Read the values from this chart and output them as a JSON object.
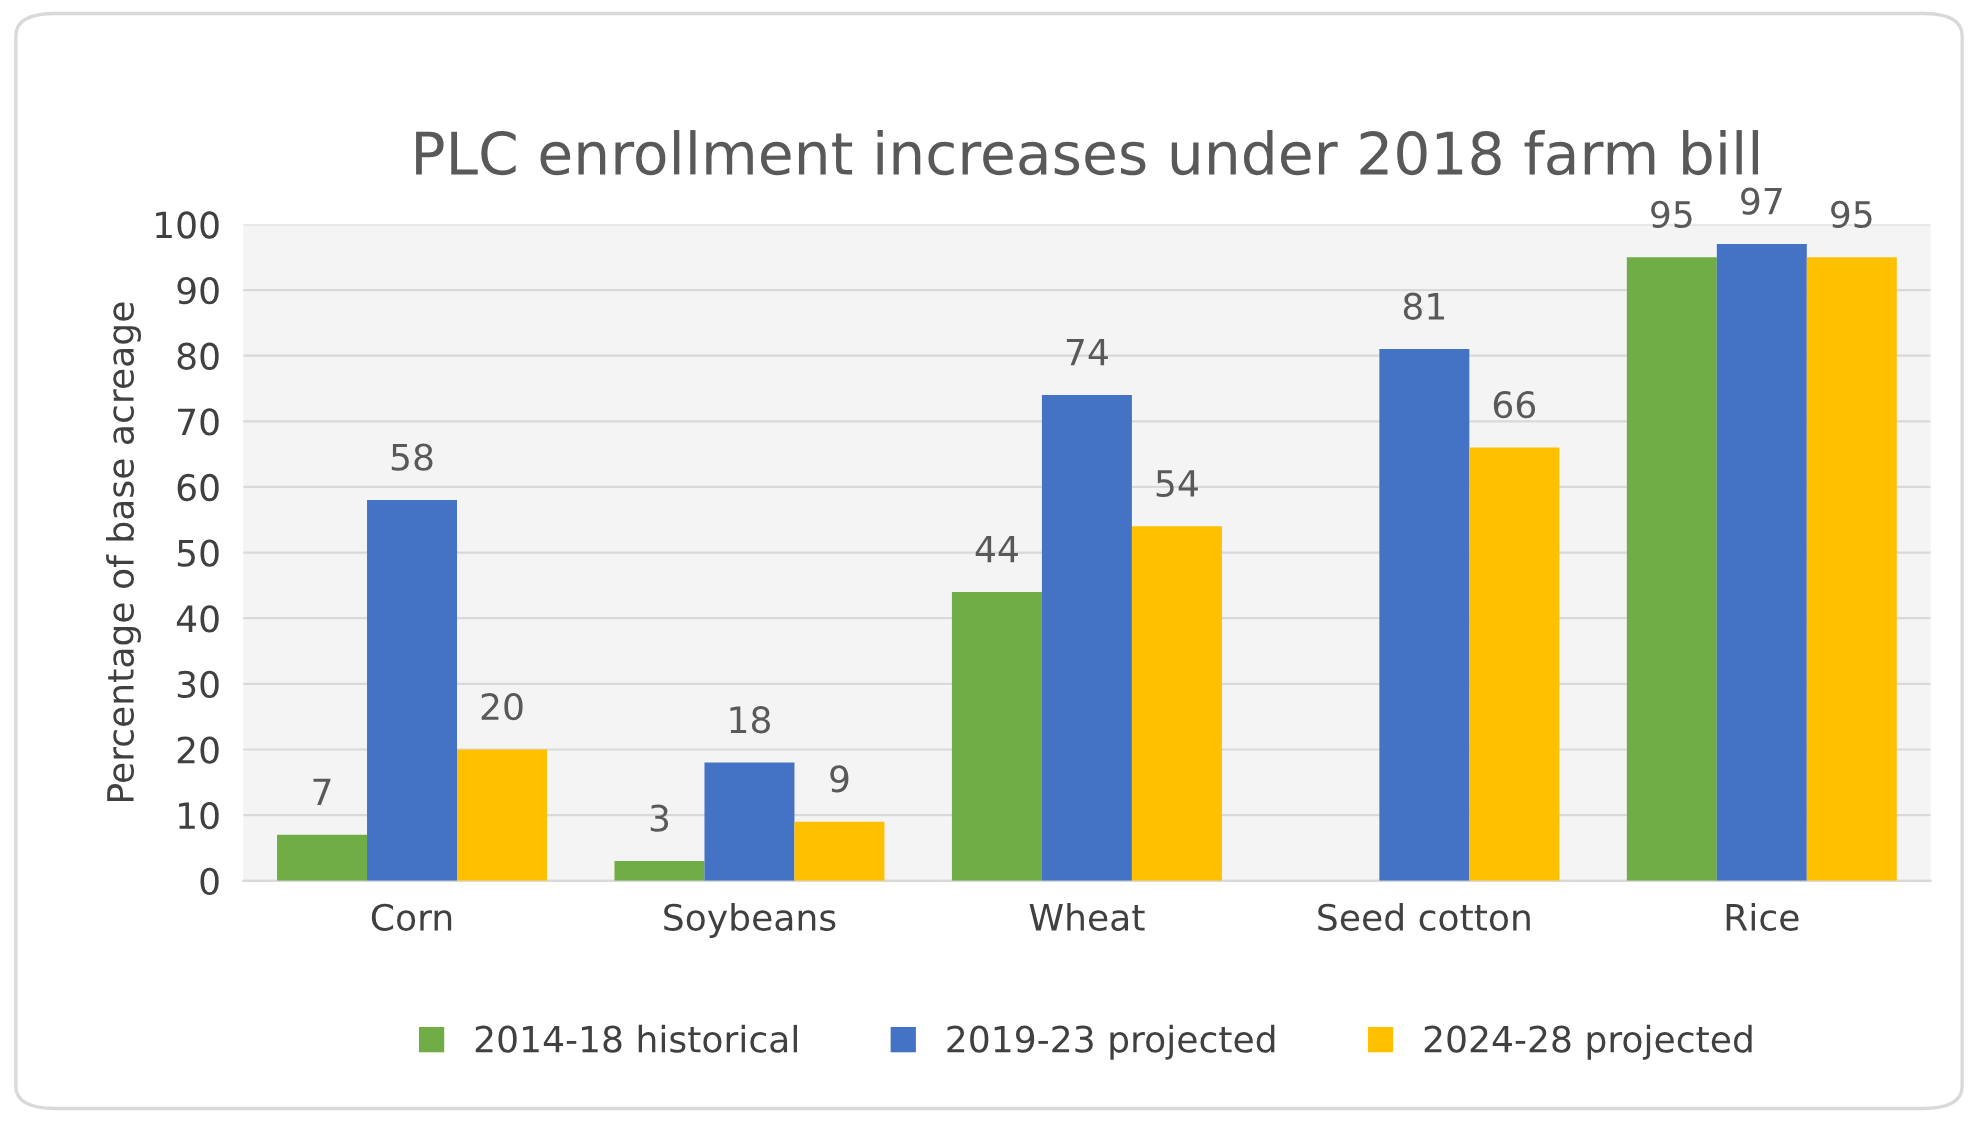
{
  "chart_data": {
    "type": "bar",
    "title": "PLC enrollment increases under 2018 farm bill",
    "ylabel": "Percentage of base acreage",
    "categories": [
      "Corn",
      "Soybeans",
      "Wheat",
      "Seed cotton",
      "Rice"
    ],
    "series": [
      {
        "name": "2014-18 historical",
        "color": "#70ad47",
        "values": [
          7,
          3,
          44,
          null,
          95
        ]
      },
      {
        "name": "2019-23 projected",
        "color": "#4472c4",
        "values": [
          58,
          18,
          74,
          81,
          97
        ]
      },
      {
        "name": "2024-28 projected",
        "color": "#ffc000",
        "values": [
          20,
          9,
          54,
          66,
          95
        ]
      }
    ],
    "ylim": [
      0,
      100
    ],
    "yticks": [
      0,
      10,
      20,
      30,
      40,
      50,
      60,
      70,
      80,
      90,
      100
    ],
    "grid": "y",
    "legend": "bottom",
    "data_labels": true
  }
}
